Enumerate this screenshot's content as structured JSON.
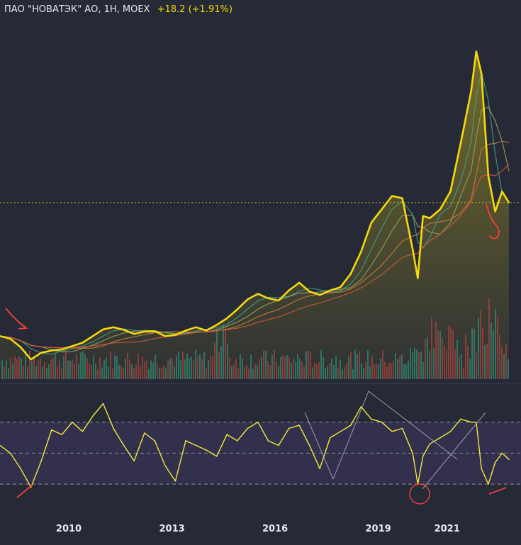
{
  "header": {
    "title": "ПАО \"НОВАТЭК\" АО, 1Н, MOEX",
    "change": "+18.2 (+1.91%)"
  },
  "colors": {
    "background": "#262a36",
    "price_line": "#f5d90a",
    "rsi_line": "#f2ea3a",
    "rsi_band": "#34314f",
    "volume_up": "#2f8f77",
    "volume_down": "#a8453f",
    "annotation": "#e8403a",
    "trend_line": "#b8b8c4",
    "ma_colors": [
      "#3fa28c",
      "#9aa35a",
      "#c8823a",
      "#d15a3a"
    ]
  },
  "chart_data": [
    {
      "type": "line",
      "title": "ПАО \"НОВАТЭК\" АО, 1Н, MOEX",
      "subtitle": "+18.2 (+1.91%)",
      "x_ticks": [
        "2010",
        "2013",
        "2016",
        "2019",
        "2021"
      ],
      "x": [
        2008.0,
        2008.3,
        2008.6,
        2008.9,
        2009.2,
        2009.5,
        2009.8,
        2010.1,
        2010.4,
        2010.7,
        2011.0,
        2011.3,
        2011.6,
        2011.9,
        2012.2,
        2012.5,
        2012.8,
        2013.1,
        2013.4,
        2013.7,
        2014.0,
        2014.3,
        2014.6,
        2014.9,
        2015.2,
        2015.5,
        2015.8,
        2016.1,
        2016.4,
        2016.7,
        2017.0,
        2017.3,
        2017.6,
        2017.9,
        2018.2,
        2018.5,
        2018.8,
        2019.1,
        2019.4,
        2019.7,
        2020.0,
        2020.15,
        2020.3,
        2020.5,
        2020.8,
        2021.1,
        2021.4,
        2021.7,
        2021.85,
        2022.0,
        2022.2,
        2022.4,
        2022.6,
        2022.8
      ],
      "series": [
        {
          "values": [
            280,
            268,
            230,
            175,
            205,
            215,
            220,
            235,
            250,
            280,
            310,
            320,
            308,
            290,
            300,
            302,
            280,
            285,
            305,
            320,
            305,
            330,
            360,
            400,
            445,
            470,
            450,
            440,
            485,
            520,
            480,
            465,
            485,
            500,
            560,
            660,
            790,
            850,
            910,
            900,
            670,
            540,
            820,
            810,
            850,
            930,
            1150,
            1380,
            1560,
            1460,
            1000,
            840,
            930,
            880
          ]
        }
      ],
      "volume": {
        "note": "relative volume bars below price, green up / red down, spike during 2014 and 2020-2022"
      },
      "moving_averages": 4,
      "reference_line": "dotted horizontal at last price",
      "annotations": [
        "red arrow near 2009 low",
        "red hook near 2022 low"
      ]
    },
    {
      "type": "line",
      "title": "",
      "x": [
        2008.0,
        2008.3,
        2008.6,
        2008.9,
        2009.2,
        2009.5,
        2009.8,
        2010.1,
        2010.4,
        2010.7,
        2011.0,
        2011.3,
        2011.6,
        2011.9,
        2012.2,
        2012.5,
        2012.8,
        2013.1,
        2013.4,
        2013.7,
        2014.0,
        2014.3,
        2014.6,
        2014.9,
        2015.2,
        2015.5,
        2015.8,
        2016.1,
        2016.4,
        2016.7,
        2017.0,
        2017.3,
        2017.6,
        2017.9,
        2018.2,
        2018.5,
        2018.8,
        2019.1,
        2019.4,
        2019.7,
        2020.0,
        2020.15,
        2020.3,
        2020.5,
        2020.8,
        2021.1,
        2021.4,
        2021.7,
        2021.85,
        2022.0,
        2022.2,
        2022.4,
        2022.6,
        2022.8
      ],
      "series": [
        {
          "values": [
            55,
            50,
            40,
            28,
            45,
            65,
            62,
            70,
            64,
            74,
            82,
            66,
            55,
            45,
            63,
            58,
            42,
            32,
            58,
            55,
            52,
            48,
            62,
            58,
            66,
            70,
            58,
            55,
            66,
            68,
            55,
            40,
            60,
            64,
            68,
            80,
            72,
            70,
            64,
            66,
            50,
            30,
            48,
            56,
            60,
            64,
            72,
            70,
            70,
            40,
            30,
            44,
            50,
            46
          ]
        }
      ],
      "bands": [
        30,
        50,
        70
      ],
      "ylim": [
        20,
        90
      ],
      "annotations": [
        "red circle at 2020 low",
        "red stroke at 2009 low",
        "red stroke at 2022 low",
        "grey trend lines"
      ]
    }
  ]
}
